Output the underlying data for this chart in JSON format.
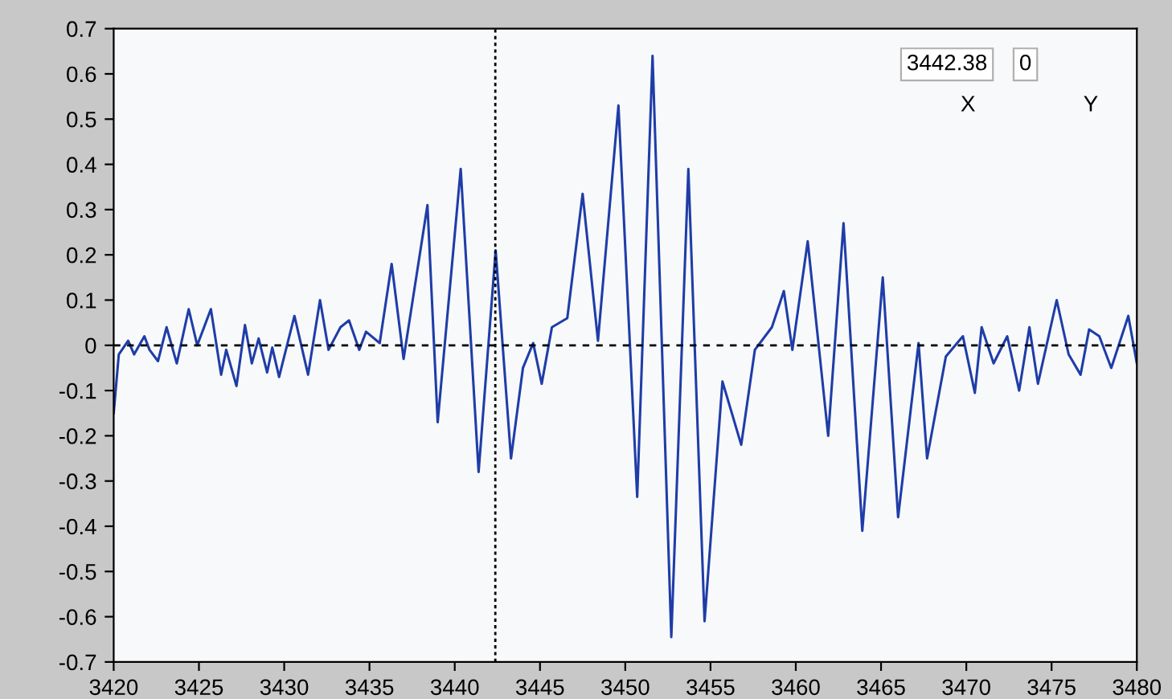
{
  "chart_data": {
    "type": "line",
    "x": [
      3420,
      3420.3,
      3420.85,
      3421.2,
      3421.8,
      3422.1,
      3422.6,
      3423.1,
      3423.7,
      3424.4,
      3424.9,
      3425.7,
      3426.3,
      3426.6,
      3427.2,
      3427.7,
      3428.1,
      3428.5,
      3429,
      3429.3,
      3429.7,
      3430.6,
      3431.4,
      3432.1,
      3432.6,
      3433.3,
      3433.8,
      3434.4,
      3434.8,
      3435.6,
      3436.3,
      3437,
      3438.4,
      3439,
      3440.35,
      3441.4,
      3442.4,
      3443.3,
      3444,
      3444.6,
      3445.1,
      3445.7,
      3446.6,
      3447.5,
      3448.4,
      3449.6,
      3450.7,
      3451.6,
      3452.7,
      3453.7,
      3454.65,
      3455.7,
      3456.8,
      3457.6,
      3458.6,
      3459.3,
      3459.8,
      3460.7,
      3461.9,
      3462.8,
      3463.9,
      3465.1,
      3466,
      3467.2,
      3467.7,
      3468.8,
      3469.8,
      3470.5,
      3470.9,
      3471.6,
      3472.4,
      3473.1,
      3473.7,
      3474.2,
      3475.3,
      3476,
      3476.7,
      3477.2,
      3477.8,
      3478.5,
      3479.5,
      3480
    ],
    "series": [
      {
        "color": "#1f3da8",
        "values": [
          -0.15,
          -0.02,
          0.01,
          -0.02,
          0.02,
          -0.01,
          -0.035,
          0.04,
          -0.04,
          0.08,
          0,
          0.08,
          -0.065,
          -0.01,
          -0.09,
          0.045,
          -0.04,
          0.015,
          -0.06,
          -0.005,
          -0.07,
          0.065,
          -0.065,
          0.1,
          -0.01,
          0.04,
          0.055,
          -0.01,
          0.03,
          0.005,
          0.18,
          -0.03,
          0.31,
          -0.17,
          0.39,
          -0.28,
          0.21,
          -0.25,
          -0.05,
          0.005,
          -0.085,
          0.04,
          0.06,
          0.335,
          0.01,
          0.53,
          -0.335,
          0.64,
          -0.645,
          0.39,
          -0.61,
          -0.08,
          -0.22,
          -0.01,
          0.04,
          0.12,
          -0.01,
          0.23,
          -0.2,
          0.27,
          -0.41,
          0.15,
          -0.38,
          0.005,
          -0.25,
          -0.025,
          0.02,
          -0.105,
          0.04,
          -0.04,
          0.02,
          -0.1,
          0.04,
          -0.085,
          0.1,
          -0.02,
          -0.065,
          0.035,
          0.02,
          -0.05,
          0.065,
          -0.04
        ]
      }
    ],
    "xlim": [
      3420,
      3480
    ],
    "xticks": [
      3420,
      3425,
      3430,
      3435,
      3440,
      3445,
      3450,
      3455,
      3460,
      3465,
      3470,
      3475,
      3480
    ],
    "ylim": [
      -0.7,
      0.7
    ],
    "yticks": [
      -0.7,
      -0.6,
      -0.5,
      -0.4,
      -0.3,
      -0.2,
      -0.1,
      0,
      0.1,
      0.2,
      0.3,
      0.4,
      0.5,
      0.6,
      0.7
    ],
    "ref_lines": [
      {
        "axis": "x",
        "value": 3442.38,
        "color": "#000000",
        "line_style": "dotted"
      },
      {
        "axis": "y",
        "value": 0,
        "color": "#000000",
        "line_style": "dashed"
      }
    ],
    "annotations": [
      "3442.38",
      "0",
      "X",
      "Y"
    ],
    "grid": false,
    "legend": false
  }
}
